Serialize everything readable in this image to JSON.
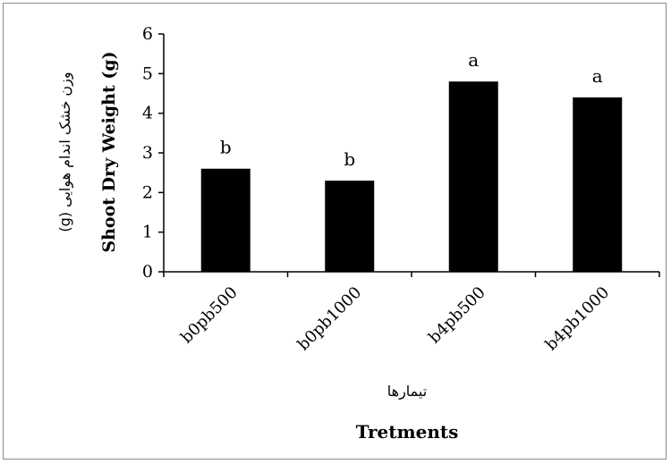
{
  "chart_data": {
    "type": "bar",
    "categories": [
      "b0pb500",
      "b0pb1000",
      "b4pb500",
      "b4pb1000"
    ],
    "values": [
      2.6,
      2.3,
      4.8,
      4.4
    ],
    "significance_letters": [
      "b",
      "b",
      "a",
      "a"
    ],
    "ylabel": "Shoot Dry Weight (g)",
    "ylabel_fa": "وزن خشک اندام هوایی (g)",
    "xlabel": "Tretments",
    "xlabel_fa": "تیمارها",
    "ylim": [
      0,
      6
    ],
    "yticks": [
      "0",
      "1",
      "2",
      "3",
      "4",
      "5",
      "6"
    ],
    "grid": false,
    "bar_color": "#000000"
  }
}
